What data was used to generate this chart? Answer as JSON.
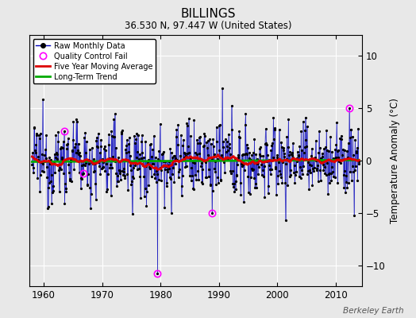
{
  "title": "BILLINGS",
  "subtitle": "36.530 N, 97.447 W (United States)",
  "ylabel": "Temperature Anomaly (°C)",
  "watermark": "Berkeley Earth",
  "xlim": [
    1957.5,
    2014.5
  ],
  "ylim": [
    -12,
    12
  ],
  "yticks": [
    -10,
    -5,
    0,
    5,
    10
  ],
  "xticks": [
    1960,
    1970,
    1980,
    1990,
    2000,
    2010
  ],
  "bg_color": "#e8e8e8",
  "line_color": "#0000bb",
  "ma_color": "#dd0000",
  "trend_color": "#00aa00",
  "qc_color": "#ff00ff",
  "seed": 12345,
  "noise_std": 1.8,
  "qc_points": [
    [
      1963.5,
      2.8
    ],
    [
      1966.8,
      -1.2
    ],
    [
      1979.5,
      -10.8
    ],
    [
      1988.8,
      -5.0
    ],
    [
      2012.3,
      5.0
    ]
  ]
}
